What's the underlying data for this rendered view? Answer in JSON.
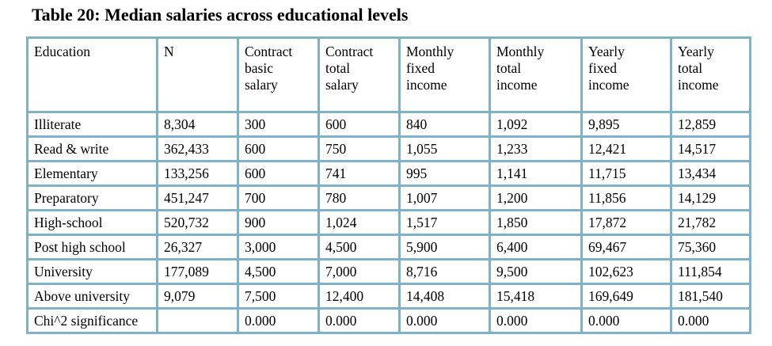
{
  "title": "Table 20: Median salaries across educational levels",
  "table": {
    "headers": [
      [
        "Education"
      ],
      [
        "N"
      ],
      [
        "Contract",
        "basic",
        "salary"
      ],
      [
        "Contract",
        "total",
        "salary"
      ],
      [
        "Monthly",
        "fixed",
        "income"
      ],
      [
        "Monthly",
        "total",
        "income"
      ],
      [
        "Yearly",
        "fixed",
        "income"
      ],
      [
        "Yearly",
        "total",
        "income"
      ]
    ],
    "rows": [
      [
        "Illiterate",
        "8,304",
        "300",
        "600",
        "840",
        "1,092",
        "9,895",
        "12,859"
      ],
      [
        "Read & write",
        "362,433",
        "600",
        "750",
        "1,055",
        "1,233",
        "12,421",
        "14,517"
      ],
      [
        "Elementary",
        "133,256",
        "600",
        "741",
        "995",
        "1,141",
        "11,715",
        "13,434"
      ],
      [
        "Preparatory",
        "451,247",
        "700",
        "780",
        "1,007",
        "1,200",
        "11,856",
        "14,129"
      ],
      [
        "High-school",
        "520,732",
        "900",
        "1,024",
        "1,517",
        "1,850",
        "17,872",
        "21,782"
      ],
      [
        "Post high school",
        "26,327",
        "3,000",
        "4,500",
        "5,900",
        "6,400",
        "69,467",
        "75,360"
      ],
      [
        "University",
        "177,089",
        "4,500",
        "7,000",
        "8,716",
        "9,500",
        "102,623",
        "111,854"
      ],
      [
        "Above university",
        "9,079",
        "7,500",
        "12,400",
        "14,408",
        "15,418",
        "169,649",
        "181,540"
      ],
      [
        "Chi^2 significance",
        "",
        "0.000",
        "0.000",
        "0.000",
        "0.000",
        "0.000",
        "0.000"
      ]
    ]
  }
}
